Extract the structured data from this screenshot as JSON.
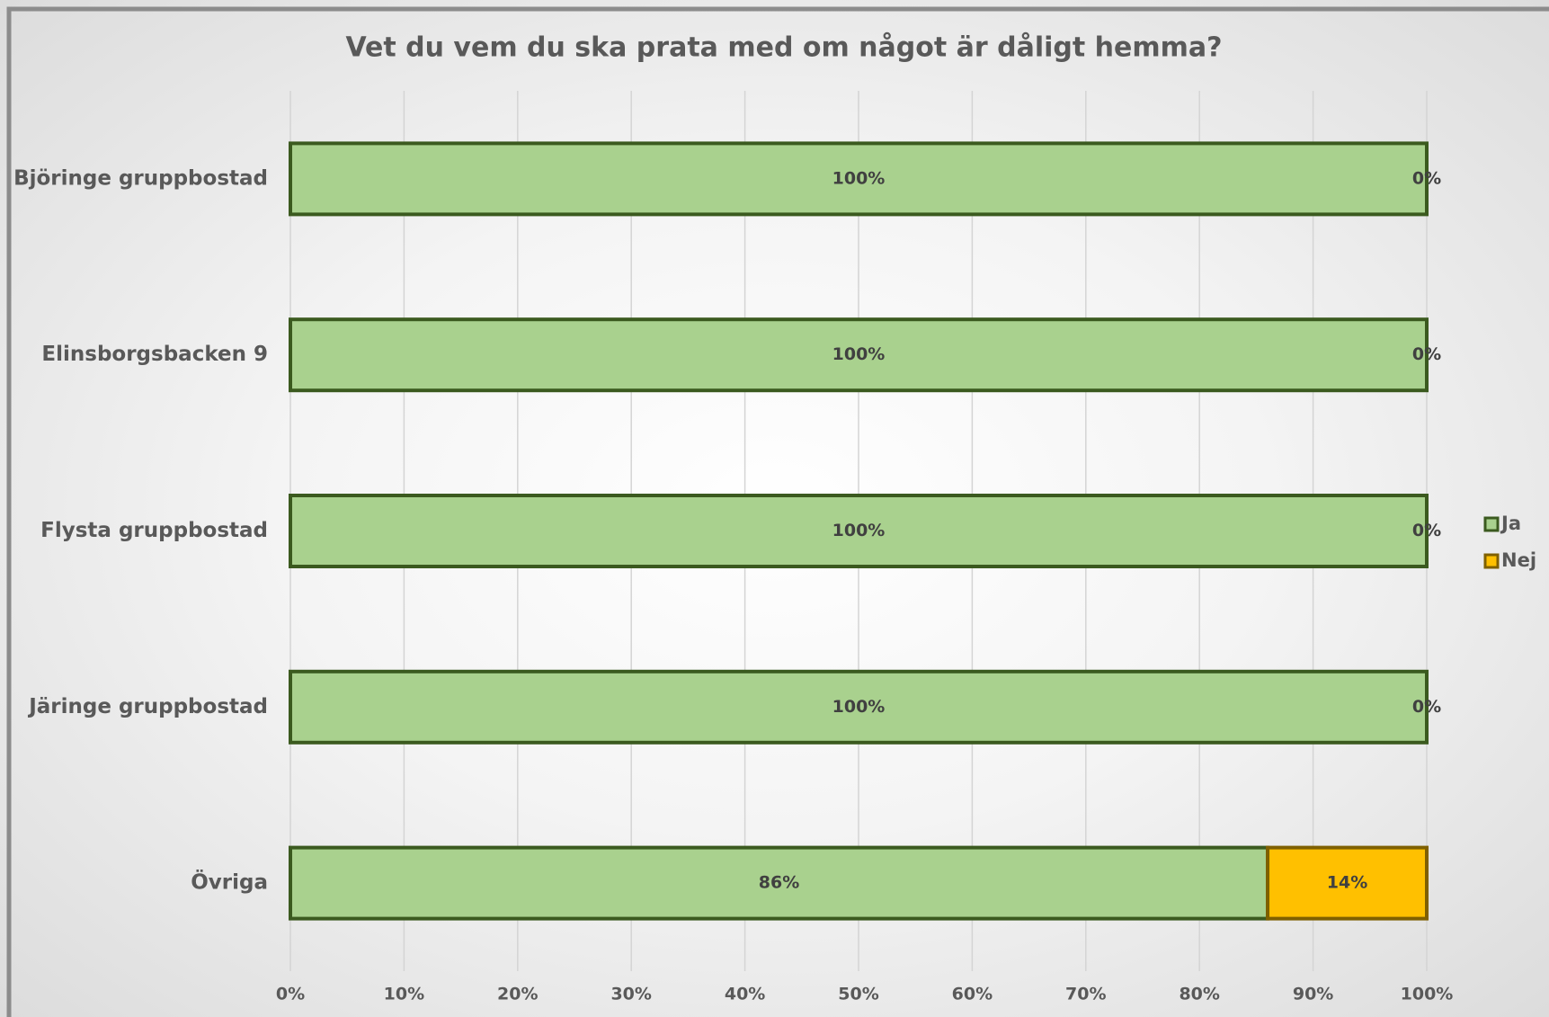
{
  "chart_data": {
    "type": "stacked_barh",
    "title": "Vet du vem du ska prata med om något är dåligt hemma?",
    "categories": [
      "Björinge gruppbostad",
      "Elinsborgsbacken 9",
      "Flysta gruppbostad",
      "Järinge gruppbostad",
      "Övriga"
    ],
    "series": [
      {
        "name": "Ja",
        "color": "#a9d18e",
        "edgecolor": "#3b5a1f",
        "values": [
          100,
          100,
          100,
          100,
          86
        ],
        "value_labels": [
          "100%",
          "100%",
          "100%",
          "100%",
          "86%"
        ]
      },
      {
        "name": "Nej",
        "color": "#ffc000",
        "edgecolor": "#7f6000",
        "values": [
          0,
          0,
          0,
          0,
          14
        ],
        "value_labels": [
          "0%",
          "0%",
          "0%",
          "0%",
          "14%"
        ]
      }
    ],
    "xlim": [
      0,
      100
    ],
    "xticks": [
      {
        "value": 0,
        "label": "0%"
      },
      {
        "value": 10,
        "label": "10%"
      },
      {
        "value": 20,
        "label": "20%"
      },
      {
        "value": 30,
        "label": "30%"
      },
      {
        "value": 40,
        "label": "40%"
      },
      {
        "value": 50,
        "label": "50%"
      },
      {
        "value": 60,
        "label": "60%"
      },
      {
        "value": 70,
        "label": "70%"
      },
      {
        "value": 80,
        "label": "80%"
      },
      {
        "value": 90,
        "label": "90%"
      },
      {
        "value": 100,
        "label": "100%"
      }
    ],
    "grid": true,
    "legend": "right"
  }
}
